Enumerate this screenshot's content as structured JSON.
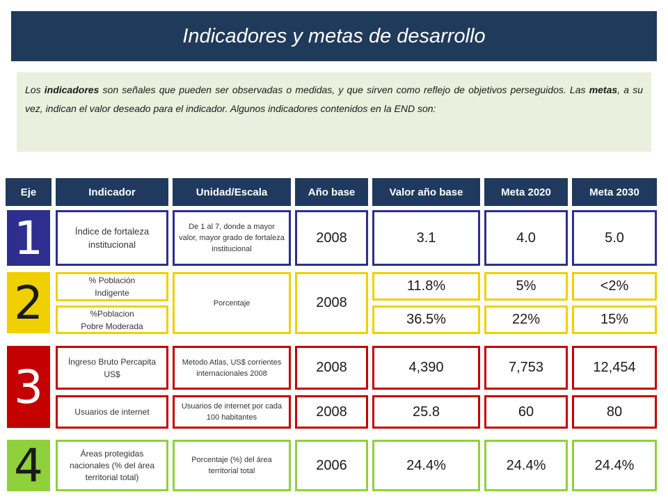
{
  "title": "Indicadores y metas de desarrollo",
  "intro": {
    "p1": "Los ",
    "b1": "indicadores",
    "p2": " son señales que pueden ser observadas o medidas, y que sirven como reflejo de objetivos perseguidos. Las ",
    "b2": "metas",
    "p3": ", a su vez, indican el valor deseado para el indicador. Algunos indicadores contenidos en la END son:"
  },
  "headers": [
    "Eje",
    "Indicador",
    "Unidad/Escala",
    "Año base",
    "Valor año base",
    "Meta 2020",
    "Meta 2030"
  ],
  "axes": [
    {
      "number": "1",
      "color": "#2e2e8f"
    },
    {
      "number": "2",
      "color": "#f0d000"
    },
    {
      "number": "3",
      "color": "#c40000"
    },
    {
      "number": "4",
      "color": "#8fd13a"
    }
  ],
  "rows": {
    "r1": {
      "indicator": "Índice de fortaleza institucional",
      "unit": "De 1 al 7, donde a mayor valor, mayor grado de fortaleza institucional",
      "base_year": "2008",
      "base_value": "3.1",
      "goal_2020": "4.0",
      "goal_2030": "5.0"
    },
    "r2a": {
      "indicator_l1": "% Población",
      "indicator_l2": "Indigente",
      "base_value": "11.8%",
      "goal_2020": "5%",
      "goal_2030": "<2%"
    },
    "r2b": {
      "indicator_l1": "%Poblacion",
      "indicator_l2": "Pobre  Moderada",
      "base_value": "36.5%",
      "goal_2020": "22%",
      "goal_2030": "15%"
    },
    "r2": {
      "unit": "Porcentaje",
      "base_year": "2008"
    },
    "r3a": {
      "indicator": "Íngreso Bruto Percapita US$",
      "unit": "Metodo Atlas, US$ corrientes internacionales 2008",
      "base_year": "2008",
      "base_value": "4,390",
      "goal_2020": "7,753",
      "goal_2030": "12,454"
    },
    "r3b": {
      "indicator": "Usuarios de internet",
      "unit": "Usuarios de internet por cada 100 habitantes",
      "base_year": "2008",
      "base_value": "25.8",
      "goal_2020": "60",
      "goal_2030": "80"
    },
    "r4": {
      "indicator": "Áreas protegidas nacionales (% del área territorial total)",
      "unit": "Porcentaje (%) del área territorial total",
      "base_year": "2006",
      "base_value": "24.4%",
      "goal_2020": "24.4%",
      "goal_2030": "24.4%"
    }
  }
}
